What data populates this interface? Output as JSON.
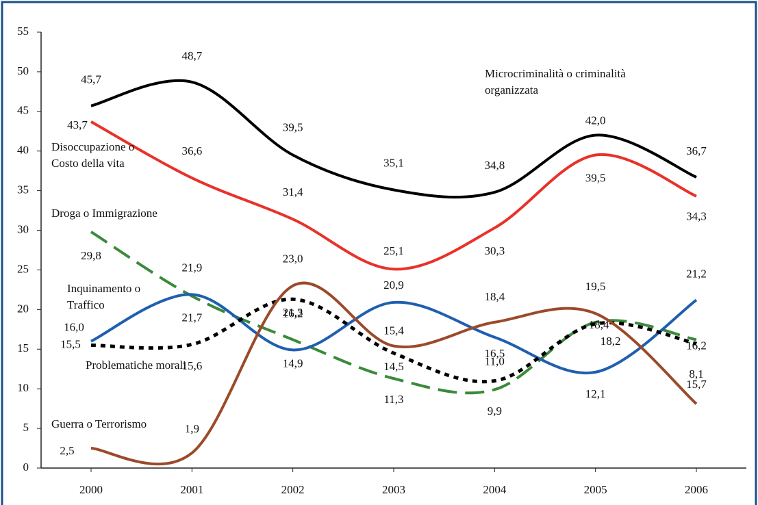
{
  "chart_data": {
    "type": "line",
    "categories": [
      "2000",
      "2001",
      "2002",
      "2003",
      "2004",
      "2005",
      "2006"
    ],
    "ylim": [
      0,
      55
    ],
    "yticks": [
      0,
      5,
      10,
      15,
      20,
      25,
      30,
      35,
      40,
      45,
      50,
      55
    ],
    "series": [
      {
        "name": "Microcriminalità o criminalità organizzata",
        "color": "#000000",
        "style": "solid",
        "values": [
          45.7,
          48.7,
          39.5,
          35.1,
          34.8,
          42.0,
          36.7
        ],
        "value_labels": [
          "45,7",
          "48,7",
          "39,5",
          "35,1",
          "34,8",
          "42,0",
          "36,7"
        ]
      },
      {
        "name": "Disoccupazione o Costo della vita",
        "color": "#e8322a",
        "style": "solid",
        "values": [
          43.7,
          36.6,
          31.4,
          25.1,
          30.3,
          39.5,
          34.3
        ],
        "value_labels": [
          "43,7",
          "36,6",
          "31,4",
          "25,1",
          "30,3",
          "39,5",
          "34,3"
        ]
      },
      {
        "name": "Droga o Immigrazione",
        "color": "#3a8a3a",
        "style": "dashed",
        "values": [
          29.8,
          21.7,
          16.2,
          11.3,
          9.9,
          18.4,
          16.2
        ],
        "value_labels": [
          "29,8",
          "21,7",
          "16,2",
          "11,3",
          "9,9",
          "18,4",
          "16,2"
        ]
      },
      {
        "name": "Inquinamento o Traffico",
        "color": "#1f5fb0",
        "style": "solid",
        "values": [
          16.0,
          21.9,
          14.9,
          20.9,
          16.5,
          12.1,
          21.2
        ],
        "value_labels": [
          "16,0",
          "21,9",
          "14,9",
          "20,9",
          "16,5",
          "12,1",
          "21,2"
        ]
      },
      {
        "name": "Problematiche morali",
        "color": "#000000",
        "style": "dotted",
        "values": [
          15.5,
          15.6,
          21.3,
          14.5,
          11.0,
          18.2,
          15.7
        ],
        "value_labels": [
          "15,5",
          "15,6",
          "21,3",
          "14,5",
          "11,0",
          "18,2",
          "15,7"
        ]
      },
      {
        "name": "Guerra o Terrorismo",
        "color": "#9b4a2a",
        "style": "solid",
        "values": [
          2.5,
          1.9,
          23.0,
          15.4,
          18.4,
          19.5,
          8.1
        ],
        "value_labels": [
          "2,5",
          "1,9",
          "23,0",
          "15,4",
          "18,4",
          "19,5",
          "8,1"
        ]
      }
    ]
  }
}
